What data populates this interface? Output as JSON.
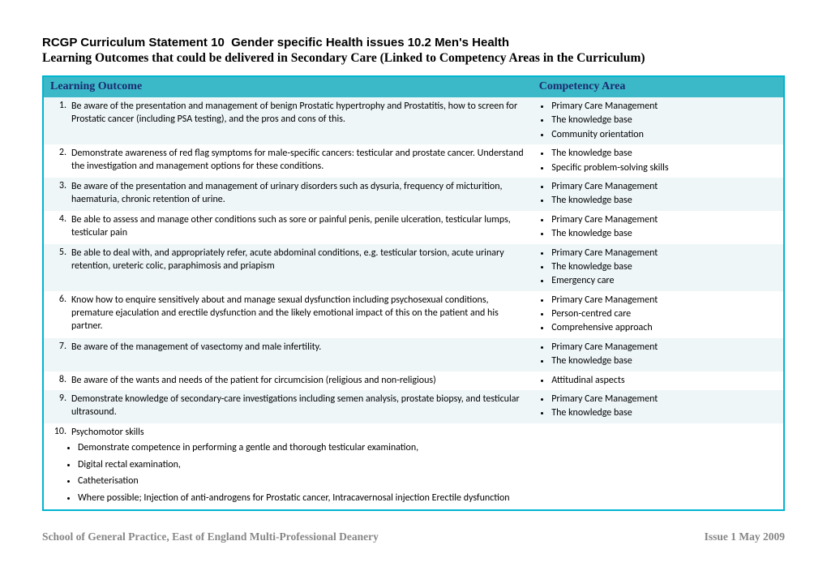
{
  "header": {
    "title1": "RCGP Curriculum Statement 10  Gender specific Health issues 10.2 Men's Health",
    "title2": "Learning Outcomes that could be delivered in Secondary Care (Linked to Competency Areas in the Curriculum)"
  },
  "table": {
    "col1": "Learning Outcome",
    "col2": "Competency Area",
    "rows": [
      {
        "alt": true,
        "num": "1.",
        "text": "Be aware of the presentation and management of benign Prostatic hypertrophy and Prostatitis, how to screen for Prostatic cancer (including PSA testing), and the pros and cons of this.",
        "comp": [
          "Primary Care Management",
          "The knowledge base",
          "Community orientation"
        ]
      },
      {
        "alt": false,
        "num": "2.",
        "text": "Demonstrate awareness of red flag symptoms for male-specific cancers: testicular and prostate cancer. Understand the investigation and management options for these conditions.",
        "comp": [
          "The knowledge base",
          "Specific problem-solving skills"
        ]
      },
      {
        "alt": true,
        "num": "3.",
        "text": "Be aware of the presentation and management of urinary disorders such as dysuria, frequency of micturition, haematuria, chronic retention of urine.",
        "comp": [
          "Primary Care Management",
          "The knowledge base"
        ]
      },
      {
        "alt": false,
        "num": "4.",
        "text": "Be able to assess and manage other conditions such as sore or painful penis, penile ulceration, testicular lumps, testicular pain",
        "comp": [
          "Primary Care Management",
          "The knowledge base"
        ]
      },
      {
        "alt": true,
        "num": "5.",
        "text": "Be able to deal with, and appropriately refer, acute abdominal conditions, e.g. testicular torsion, acute urinary retention, ureteric colic, paraphimosis and priapism",
        "comp": [
          "Primary Care Management",
          "The knowledge base",
          "Emergency care"
        ]
      },
      {
        "alt": false,
        "num": "6.",
        "text": "Know how to enquire sensitively about and manage sexual dysfunction including psychosexual conditions, premature ejaculation and erectile dysfunction and the likely emotional impact of this on the patient and his partner.",
        "comp": [
          "Primary Care Management",
          "Person-centred care",
          "Comprehensive approach"
        ]
      },
      {
        "alt": true,
        "num": "7.",
        "text": "Be aware of the management of vasectomy and male infertility.",
        "comp": [
          "Primary Care Management",
          "The knowledge base"
        ]
      },
      {
        "alt": false,
        "num": "8.",
        "text": "Be aware of the wants and needs of the patient for circumcision (religious and non-religious)",
        "comp": [
          "Attitudinal aspects"
        ]
      },
      {
        "alt": true,
        "num": "9.",
        "text": "Demonstrate knowledge of secondary-care investigations including semen analysis, prostate biopsy, and testicular ultrasound.",
        "comp": [
          "Primary Care Management",
          "The knowledge base"
        ]
      },
      {
        "alt": false,
        "num": "10.",
        "text": "Psychomotor skills",
        "sub": [
          "Demonstrate competence in performing a gentle and thorough testicular examination,",
          "Digital rectal examination,",
          "Catheterisation",
          "Where possible; Injection of anti-androgens for Prostatic cancer, Intracavernosal injection Erectile dysfunction"
        ],
        "comp": []
      }
    ]
  },
  "footer": {
    "left": "School of General Practice, East of England Multi-Professional Deanery",
    "right": "Issue 1 May 2009"
  }
}
